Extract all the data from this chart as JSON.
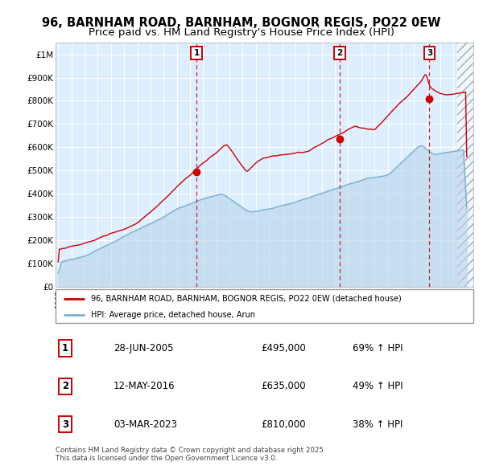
{
  "title_line1": "96, BARNHAM ROAD, BARNHAM, BOGNOR REGIS, PO22 0EW",
  "title_line2": "Price paid vs. HM Land Registry's House Price Index (HPI)",
  "red_label": "96, BARNHAM ROAD, BARNHAM, BOGNOR REGIS, PO22 0EW (detached house)",
  "blue_label": "HPI: Average price, detached house, Arun",
  "sale_markers": [
    {
      "num": 1,
      "date": "28-JUN-2005",
      "price": 495000,
      "hpi_pct": "69% ↑ HPI",
      "x_year": 2005.49
    },
    {
      "num": 2,
      "date": "12-MAY-2016",
      "price": 635000,
      "hpi_pct": "49% ↑ HPI",
      "x_year": 2016.36
    },
    {
      "num": 3,
      "date": "03-MAR-2023",
      "price": 810000,
      "hpi_pct": "38% ↑ HPI",
      "x_year": 2023.17
    }
  ],
  "footnote": "Contains HM Land Registry data © Crown copyright and database right 2025.\nThis data is licensed under the Open Government Licence v3.0.",
  "ylim": [
    0,
    1050000
  ],
  "xlim_start": 1994.8,
  "xlim_end": 2026.5,
  "plot_bg": "#ddeeff",
  "red_line_color": "#cc0000",
  "blue_line_color": "#7ab0d4",
  "blue_fill_color": "#b8d4ea",
  "grid_color": "#ffffff",
  "title_fontsize": 10.5,
  "subtitle_fontsize": 9.5,
  "ytick_labels": [
    "£1M",
    "£900K",
    "£800K",
    "£700K",
    "£600K",
    "£500K",
    "£400K",
    "£300K",
    "£200K",
    "£100K",
    "£0"
  ],
  "ytick_vals": [
    1000000,
    900000,
    800000,
    700000,
    600000,
    500000,
    400000,
    300000,
    200000,
    100000,
    0
  ]
}
